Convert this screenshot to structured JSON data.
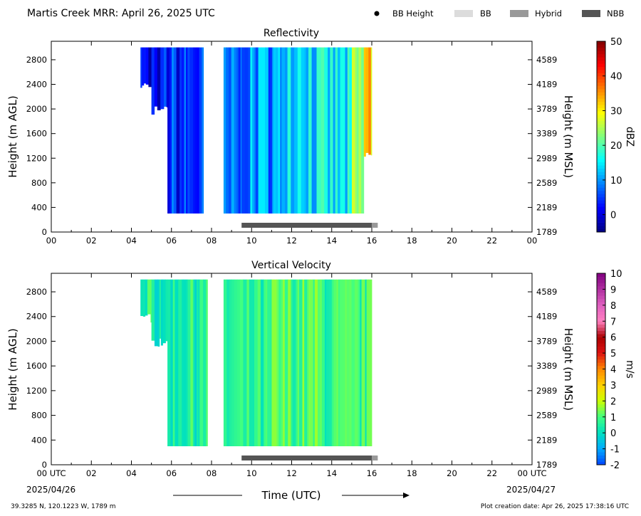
{
  "header": {
    "title": "Martis Creek MRR:  April 26, 2025 UTC",
    "legend": [
      {
        "label": "BB Height",
        "kind": "dot",
        "color": "#000000"
      },
      {
        "label": "BB",
        "kind": "box",
        "color": "#dcdcdc"
      },
      {
        "label": "Hybrid",
        "kind": "box",
        "color": "#999999"
      },
      {
        "label": "NBB",
        "kind": "box",
        "color": "#555555"
      }
    ]
  },
  "footer": {
    "location": "39.3285 N, 120.1223 W, 1789 m",
    "creation": "Plot creation date: Apr 26, 2025 17:38:16 UTC",
    "xlabel": "Time (UTC)",
    "start_date": "2025/04/26",
    "end_date": "2025/04/27"
  },
  "chart_data": [
    {
      "type": "heatmap",
      "title": "Reflectivity",
      "ylabel": "Height (m AGL)",
      "ylabel_right": "Height (m MSL)",
      "x_ticks": [
        "00",
        "02",
        "04",
        "06",
        "08",
        "10",
        "12",
        "14",
        "16",
        "18",
        "20",
        "22",
        "00"
      ],
      "xlim": [
        0,
        24
      ],
      "y_ticks": [
        0,
        400,
        800,
        1200,
        1600,
        2000,
        2400,
        2800
      ],
      "y_ticks_right": [
        1789,
        2189,
        2589,
        2989,
        3389,
        3789,
        4189,
        4589
      ],
      "ylim": [
        0,
        3100
      ],
      "colorbar": {
        "label": "dBZ",
        "min": -5,
        "max": 50,
        "ticks": [
          0,
          10,
          20,
          30,
          40,
          50
        ],
        "colormap": [
          "#00007f",
          "#0000ff",
          "#007fff",
          "#00ffff",
          "#7fff7f",
          "#ffff00",
          "#ff7f00",
          "#ff0000",
          "#7f0000"
        ]
      },
      "bands": [
        {
          "start_hour": 4.45,
          "end_hour": 5.0,
          "bottom_m": 2300,
          "value": 0
        },
        {
          "start_hour": 5.0,
          "end_hour": 5.8,
          "bottom_m": 1900,
          "value": 2
        },
        {
          "start_hour": 5.8,
          "end_hour": 7.6,
          "bottom_m": 300,
          "value": 4
        },
        {
          "start_hour": 8.6,
          "end_hour": 9.5,
          "bottom_m": 300,
          "value": 6
        },
        {
          "start_hour": 9.5,
          "end_hour": 11.5,
          "bottom_m": 300,
          "value": 10
        },
        {
          "start_hour": 11.5,
          "end_hour": 13.0,
          "bottom_m": 300,
          "value": 16
        },
        {
          "start_hour": 13.0,
          "end_hour": 15.0,
          "bottom_m": 300,
          "value": 14
        },
        {
          "start_hour": 15.0,
          "end_hour": 15.6,
          "bottom_m": 300,
          "value": 22
        },
        {
          "start_hour": 15.6,
          "end_hour": 16.0,
          "bottom_m": 1200,
          "value": 33
        }
      ],
      "bright_band": [
        {
          "start_hour": 9.5,
          "end_hour": 16.0,
          "type": "NBB"
        },
        {
          "start_hour": 16.0,
          "end_hour": 16.3,
          "type": "Hybrid"
        }
      ]
    },
    {
      "type": "heatmap",
      "title": "Vertical Velocity",
      "ylabel": "Height (m AGL)",
      "ylabel_right": "Height (m MSL)",
      "x_ticks": [
        "00 UTC",
        "02",
        "04",
        "06",
        "08",
        "10",
        "12",
        "14",
        "16",
        "18",
        "20",
        "22",
        "00 UTC"
      ],
      "xlim": [
        0,
        24
      ],
      "y_ticks": [
        0,
        400,
        800,
        1200,
        1600,
        2000,
        2400,
        2800
      ],
      "y_ticks_right": [
        1789,
        2189,
        2589,
        2989,
        3389,
        3789,
        4189,
        4589
      ],
      "ylim": [
        0,
        3100
      ],
      "colorbar": {
        "label": "m/s",
        "min": -2,
        "max": 10,
        "ticks": [
          -2,
          -1,
          0,
          1,
          2,
          3,
          4,
          5,
          6,
          7,
          8,
          9,
          10
        ],
        "colormap": [
          "#0044ff",
          "#00aaff",
          "#00e0c0",
          "#40ff80",
          "#ccff00",
          "#ffd000",
          "#ff8800",
          "#dd1111",
          "#aa0000",
          "#ff80c0",
          "#e060c0",
          "#b030a0",
          "#800080"
        ]
      },
      "bands": [
        {
          "start_hour": 4.45,
          "end_hour": 5.0,
          "bottom_m": 2300,
          "value": 0.6
        },
        {
          "start_hour": 5.0,
          "end_hour": 5.8,
          "bottom_m": 1900,
          "value": 0.4
        },
        {
          "start_hour": 5.8,
          "end_hour": 7.8,
          "bottom_m": 300,
          "value": 0.5
        },
        {
          "start_hour": 8.6,
          "end_hour": 11.0,
          "bottom_m": 300,
          "value": 0.5
        },
        {
          "start_hour": 11.0,
          "end_hour": 13.5,
          "bottom_m": 300,
          "value": 1.0
        },
        {
          "start_hour": 13.5,
          "end_hour": 16.0,
          "bottom_m": 300,
          "value": 0.7
        }
      ],
      "bright_band": [
        {
          "start_hour": 9.5,
          "end_hour": 16.0,
          "type": "NBB"
        },
        {
          "start_hour": 16.0,
          "end_hour": 16.3,
          "type": "Hybrid"
        }
      ]
    }
  ]
}
